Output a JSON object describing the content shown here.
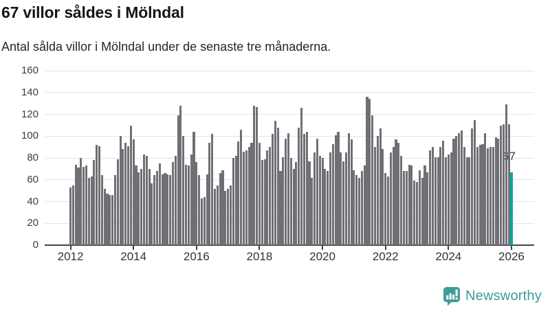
{
  "header": {
    "title": "67 villor såldes i Mölndal",
    "subtitle": "Antal sålda villor i Mölndal under de senaste tre månaderna."
  },
  "chart_data": {
    "type": "bar",
    "title": "67 villor såldes i Mölndal",
    "subtitle": "Antal sålda villor i Mölndal under de senaste tre månaderna.",
    "xlabel": "",
    "ylabel": "",
    "ylim": [
      0,
      160
    ],
    "grid": true,
    "legend": false,
    "freq": "monthly",
    "x_start": "2012-01",
    "y_ticks": [
      0,
      20,
      40,
      60,
      80,
      100,
      120,
      140,
      160
    ],
    "x_tick_labels": [
      "2012",
      "2014",
      "2016",
      "2018",
      "2020",
      "2022",
      "2024",
      "2026"
    ],
    "x_tick_month_index": [
      0,
      24,
      48,
      72,
      96,
      120,
      144,
      168
    ],
    "values": [
      53,
      55,
      74,
      71,
      80,
      72,
      73,
      62,
      63,
      78,
      92,
      91,
      64,
      52,
      47,
      46,
      46,
      64,
      79,
      100,
      88,
      94,
      91,
      110,
      97,
      73,
      67,
      70,
      83,
      82,
      70,
      57,
      64,
      68,
      75,
      65,
      66,
      65,
      64,
      76,
      82,
      119,
      128,
      100,
      74,
      73,
      83,
      104,
      76,
      64,
      43,
      44,
      65,
      94,
      102,
      52,
      55,
      66,
      69,
      50,
      52,
      55,
      80,
      82,
      95,
      106,
      86,
      87,
      90,
      94,
      128,
      127,
      94,
      78,
      79,
      87,
      90,
      102,
      114,
      108,
      68,
      81,
      98,
      103,
      80,
      70,
      76,
      108,
      126,
      102,
      104,
      77,
      62,
      85,
      98,
      82,
      80,
      70,
      68,
      85,
      93,
      101,
      104,
      85,
      77,
      85,
      103,
      97,
      69,
      64,
      62,
      68,
      73,
      136,
      134,
      119,
      90,
      100,
      107,
      88,
      66,
      63,
      85,
      90,
      97,
      94,
      82,
      68,
      68,
      74,
      73,
      59,
      58,
      69,
      62,
      73,
      67,
      87,
      90,
      81,
      81,
      90,
      96,
      81,
      83,
      85,
      98,
      100,
      103,
      105,
      90,
      81,
      81,
      107,
      115,
      90,
      92,
      93,
      103,
      89,
      90,
      90,
      99,
      98,
      110,
      111,
      129,
      111,
      67
    ],
    "highlight_index": 168,
    "highlight_value": 67,
    "highlight_label": "67",
    "bar_color": "#6f6f75",
    "highlight_color": "#14a0a0"
  },
  "footer": {
    "brand": "Newsworthy",
    "brand_color": "#3F9C98",
    "icon": "newsworthy-logo-icon"
  }
}
